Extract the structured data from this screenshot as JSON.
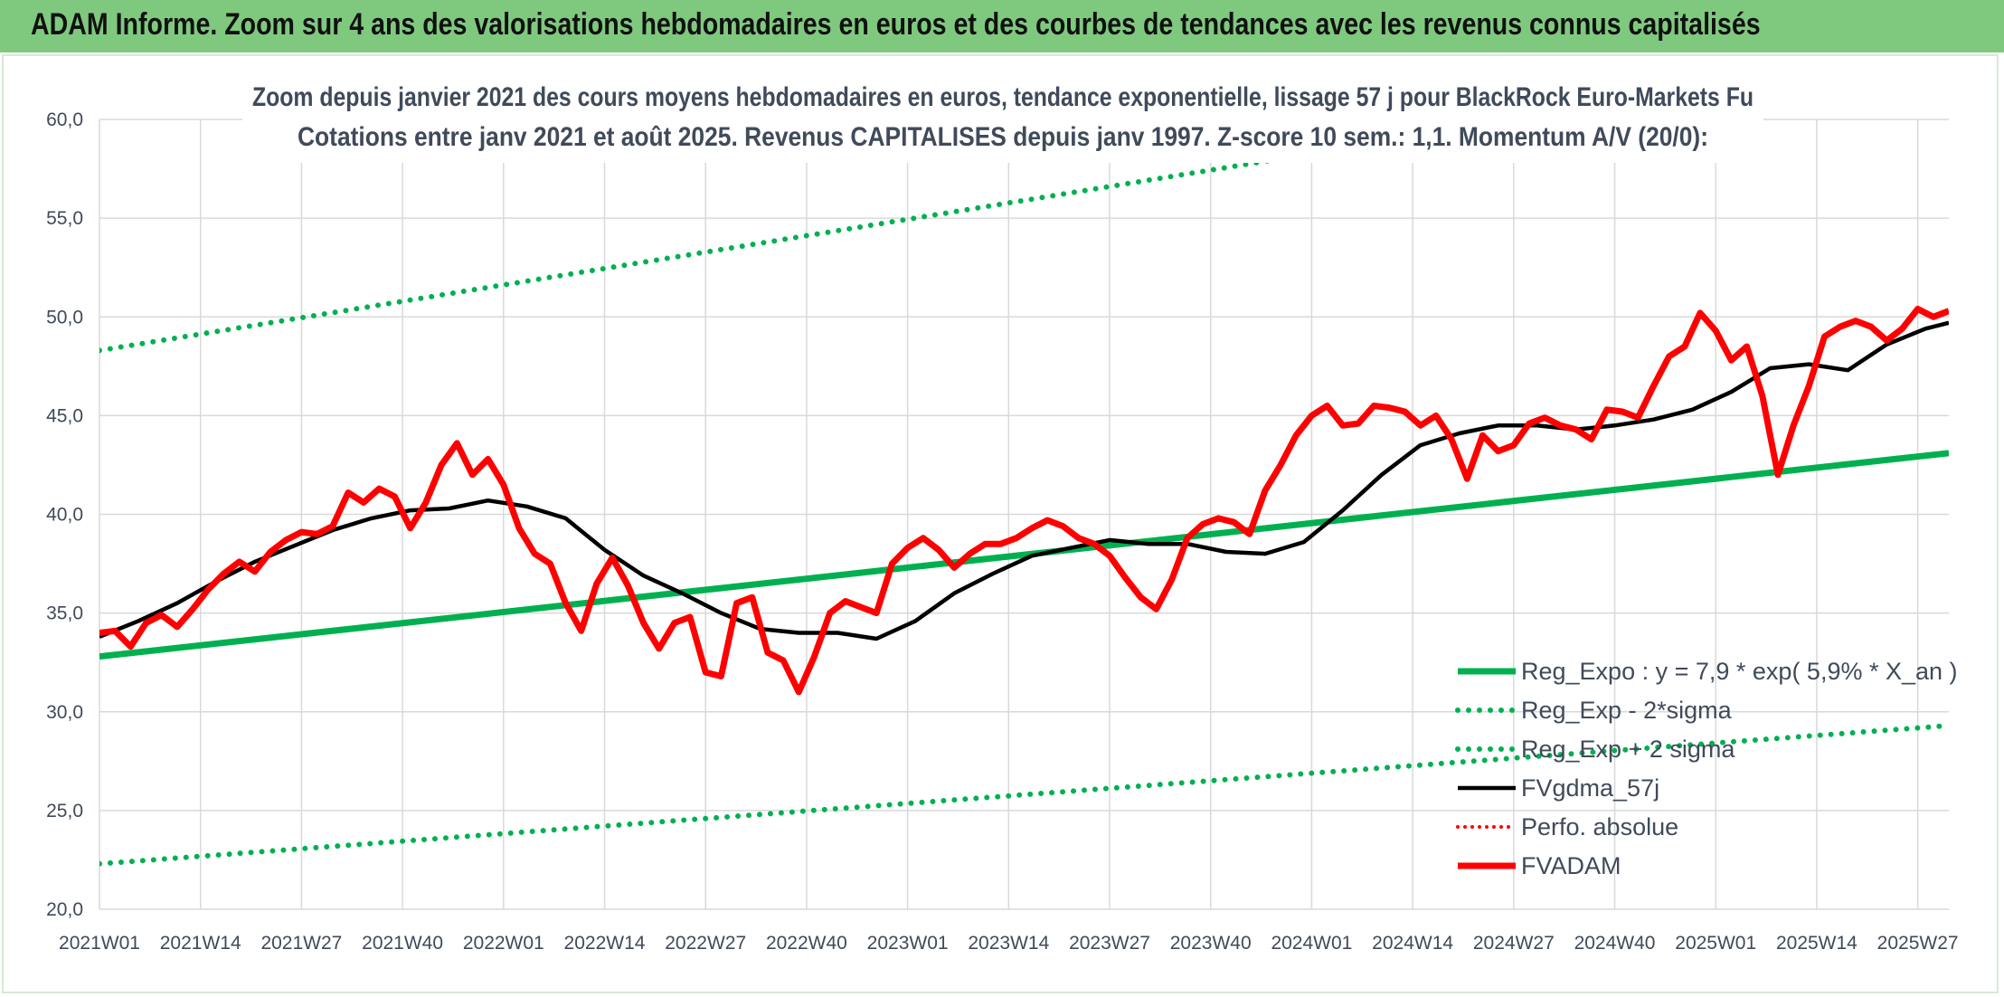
{
  "header": {
    "title": "ADAM Informe. Zoom sur 4 ans des valorisations hebdomadaires en euros et des courbes de tendances avec les revenus connus capitalisés"
  },
  "colors": {
    "header_bg": "#7fc97f",
    "trend": "#00b050",
    "fvgdma": "#000000",
    "fvadam": "#ff0000",
    "perfo": "#ff0000",
    "grid": "#d9d9d9"
  },
  "chart_data": {
    "type": "line",
    "title_lines": [
      "Zoom depuis janvier 2021 des cours moyens hebdomadaires en euros, tendance exponentielle, lissage 57 j pour BlackRock Euro-Markets Fu",
      "Cotations entre janv 2021 et août 2025. Revenus CAPITALISES depuis janv 1997. Z-score 10 sem.: 1,1. Momentum A/V (20/0):"
    ],
    "x_tick_labels": [
      "2021W01",
      "2021W14",
      "2021W27",
      "2021W40",
      "2022W01",
      "2022W14",
      "2022W27",
      "2022W40",
      "2023W01",
      "2023W14",
      "2023W27",
      "2023W40",
      "2024W01",
      "2024W14",
      "2024W27",
      "2024W40",
      "2025W01",
      "2025W14",
      "2025W27"
    ],
    "week_range": [
      0,
      238
    ],
    "ylim": [
      20,
      60
    ],
    "y_ticks": [
      "20,0",
      "25,0",
      "30,0",
      "35,0",
      "40,0",
      "45,0",
      "50,0",
      "55,0",
      "60,0"
    ],
    "grid": true,
    "legend_position": "bottom-right",
    "legend": [
      {
        "name": "Reg_Expo : y = 7,9 * exp( 5,9% *  X_an )",
        "style": "solid-green"
      },
      {
        "name": "Reg_Exp - 2*sigma",
        "style": "dotted-green"
      },
      {
        "name": "Reg_Exp + 2 sigma",
        "style": "dotted-green"
      },
      {
        "name": "FVgdma_57j",
        "style": "solid-black"
      },
      {
        "name": "Perfo. absolue",
        "style": "dotted-red"
      },
      {
        "name": "FVADAM",
        "style": "solid-red"
      }
    ],
    "series": [
      {
        "name": "Reg_Expo : y = 7,9 * exp( 5,9% *  X_an )",
        "style": "solid-green",
        "x": [
          0,
          238
        ],
        "y": [
          32.8,
          43.1
        ]
      },
      {
        "name": "Reg_Exp - 2*sigma",
        "style": "dotted-green",
        "x": [
          0,
          238
        ],
        "y": [
          22.3,
          29.3
        ]
      },
      {
        "name": "Reg_Exp + 2 sigma",
        "style": "dotted-green",
        "x": [
          0,
          238
        ],
        "y": [
          48.3,
          63.5
        ]
      },
      {
        "name": "FVgdma_57j",
        "style": "solid-black",
        "x": [
          0,
          5,
          10,
          15,
          20,
          25,
          30,
          35,
          40,
          45,
          50,
          55,
          60,
          65,
          70,
          75,
          80,
          85,
          90,
          95,
          100,
          105,
          110,
          115,
          120,
          125,
          130,
          135,
          140,
          145,
          150,
          155,
          160,
          165,
          170,
          175,
          180,
          185,
          190,
          195,
          200,
          205,
          210,
          215,
          220,
          225,
          230,
          235,
          238
        ],
        "y": [
          33.8,
          34.6,
          35.5,
          36.6,
          37.6,
          38.4,
          39.2,
          39.8,
          40.2,
          40.3,
          40.7,
          40.4,
          39.8,
          38.2,
          36.9,
          36.0,
          35.0,
          34.2,
          34.0,
          34.0,
          33.7,
          34.6,
          36.0,
          37.0,
          37.9,
          38.3,
          38.7,
          38.5,
          38.5,
          38.1,
          38.0,
          38.6,
          40.2,
          42.0,
          43.5,
          44.1,
          44.5,
          44.5,
          44.3,
          44.5,
          44.8,
          45.3,
          46.2,
          47.4,
          47.6,
          47.3,
          48.6,
          49.4,
          49.7
        ]
      },
      {
        "name": "Perfo. absolue",
        "style": "dotted-red",
        "x": [],
        "y": []
      },
      {
        "name": "FVADAM",
        "style": "solid-red",
        "x": [
          0,
          2,
          4,
          6,
          8,
          10,
          12,
          14,
          16,
          18,
          20,
          22,
          24,
          26,
          28,
          30,
          32,
          34,
          36,
          38,
          40,
          42,
          44,
          46,
          48,
          50,
          52,
          54,
          56,
          58,
          60,
          62,
          64,
          66,
          68,
          70,
          72,
          74,
          76,
          78,
          80,
          82,
          84,
          86,
          88,
          90,
          92,
          94,
          96,
          98,
          100,
          102,
          104,
          106,
          108,
          110,
          112,
          114,
          116,
          118,
          120,
          122,
          124,
          126,
          128,
          130,
          132,
          134,
          136,
          138,
          140,
          142,
          144,
          146,
          148,
          150,
          152,
          154,
          156,
          158,
          160,
          162,
          164,
          166,
          168,
          170,
          172,
          174,
          176,
          178,
          180,
          182,
          184,
          186,
          188,
          190,
          192,
          194,
          196,
          198,
          200,
          202,
          204,
          206,
          208,
          210,
          212,
          214,
          216,
          218,
          220,
          222,
          224,
          226,
          228,
          230,
          232,
          234,
          236,
          238
        ],
        "y": [
          34.0,
          34.1,
          33.3,
          34.5,
          34.9,
          34.3,
          35.2,
          36.2,
          37.0,
          37.6,
          37.1,
          38.1,
          38.7,
          39.1,
          39.0,
          39.4,
          41.1,
          40.6,
          41.3,
          40.9,
          39.3,
          40.6,
          42.5,
          43.6,
          42.0,
          42.8,
          41.5,
          39.3,
          38.0,
          37.5,
          35.5,
          34.1,
          36.5,
          37.8,
          36.4,
          34.5,
          33.2,
          34.5,
          34.8,
          32.0,
          31.8,
          35.5,
          35.8,
          33.0,
          32.6,
          31.0,
          32.8,
          35.0,
          35.6,
          35.3,
          35.0,
          37.5,
          38.3,
          38.8,
          38.2,
          37.3,
          38.0,
          38.5,
          38.5,
          38.8,
          39.3,
          39.7,
          39.4,
          38.8,
          38.5,
          37.9,
          36.8,
          35.8,
          35.2,
          36.7,
          38.8,
          39.5,
          39.8,
          39.6,
          39.0,
          41.2,
          42.5,
          44.0,
          45.0,
          45.5,
          44.5,
          44.6,
          45.5,
          45.4,
          45.2,
          44.5,
          45.0,
          43.8,
          41.8,
          44.0,
          43.2,
          43.5,
          44.6,
          44.9,
          44.5,
          44.3,
          43.8,
          45.3,
          45.2,
          44.9,
          46.5,
          48.0,
          48.5,
          50.2,
          49.3,
          47.8,
          48.5,
          46.0,
          42.0,
          44.5,
          46.5,
          49.0,
          49.5,
          49.8,
          49.5,
          48.8,
          49.4,
          50.4,
          50.0,
          50.3
        ]
      }
    ]
  }
}
